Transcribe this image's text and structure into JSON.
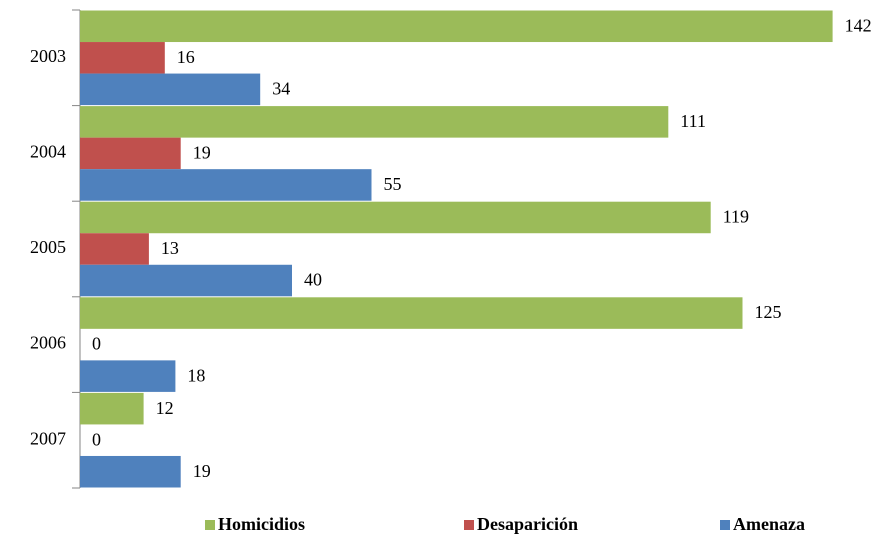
{
  "chart_data": {
    "type": "bar",
    "orientation": "horizontal",
    "categories": [
      "2003",
      "2004",
      "2005",
      "2006",
      "2007"
    ],
    "series": [
      {
        "name": "Homicidios",
        "color": "#9bbb59",
        "values": [
          142,
          111,
          119,
          125,
          12
        ]
      },
      {
        "name": "Desaparición",
        "color": "#c0504d",
        "values": [
          16,
          19,
          13,
          0,
          0
        ]
      },
      {
        "name": "Amenaza",
        "color": "#4f81bd",
        "values": [
          34,
          55,
          40,
          18,
          19
        ]
      }
    ],
    "xlim": [
      0,
      150
    ],
    "legend": "bottom",
    "data_labels": true
  }
}
